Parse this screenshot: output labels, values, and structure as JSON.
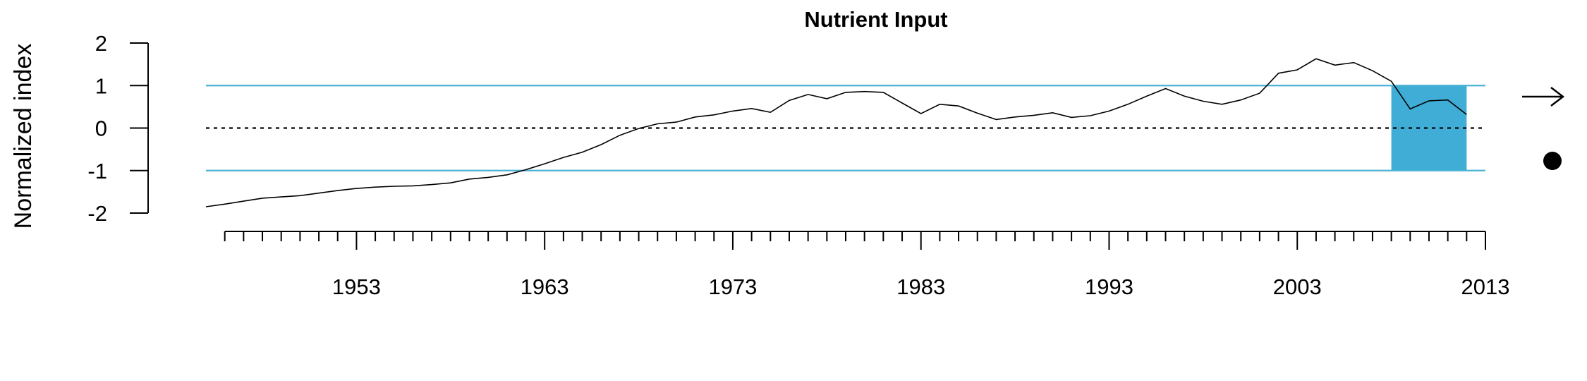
{
  "chart_data": {
    "type": "line",
    "title": "Nutrient Input",
    "ylabel": "Normalized index",
    "xlabel": "",
    "xlim": [
      1945,
      2013
    ],
    "ylim": [
      -2,
      2
    ],
    "y_ticks": [
      -2,
      -1,
      0,
      1,
      2
    ],
    "x_tick_labels": [
      1953,
      1963,
      1973,
      1983,
      1993,
      2003,
      2013
    ],
    "x_minor_tick_step": 1,
    "reference_lines": [
      {
        "y": 1,
        "style": "solid",
        "color": "#4ab3d3"
      },
      {
        "y": -1,
        "style": "solid",
        "color": "#4ab3d3"
      },
      {
        "y": 0,
        "style": "dotted",
        "color": "#000000"
      }
    ],
    "highlight_region": {
      "x": [
        2008,
        2012
      ],
      "y": [
        -1,
        1
      ],
      "color": "#3fadd6"
    },
    "series": [
      {
        "color": "#000000",
        "x": [
          1945,
          1946,
          1947,
          1948,
          1949,
          1950,
          1951,
          1952,
          1953,
          1954,
          1955,
          1956,
          1957,
          1958,
          1959,
          1960,
          1961,
          1962,
          1963,
          1964,
          1965,
          1966,
          1967,
          1968,
          1969,
          1970,
          1971,
          1972,
          1973,
          1974,
          1975,
          1976,
          1977,
          1978,
          1979,
          1980,
          1981,
          1982,
          1983,
          1984,
          1985,
          1986,
          1987,
          1988,
          1989,
          1990,
          1991,
          1992,
          1993,
          1994,
          1995,
          1996,
          1997,
          1998,
          1999,
          2000,
          2001,
          2002,
          2003,
          2004,
          2005,
          2006,
          2007,
          2008,
          2009,
          2010,
          2011,
          2012
        ],
        "values": [
          -1.85,
          -1.79,
          -1.72,
          -1.65,
          -1.62,
          -1.59,
          -1.53,
          -1.47,
          -1.42,
          -1.39,
          -1.37,
          -1.36,
          -1.33,
          -1.29,
          -1.2,
          -1.16,
          -1.1,
          -0.98,
          -0.84,
          -0.69,
          -0.57,
          -0.39,
          -0.17,
          -0.01,
          0.1,
          0.14,
          0.26,
          0.31,
          0.4,
          0.46,
          0.37,
          0.65,
          0.79,
          0.69,
          0.84,
          0.86,
          0.84,
          0.59,
          0.34,
          0.56,
          0.52,
          0.35,
          0.2,
          0.26,
          0.3,
          0.36,
          0.25,
          0.29,
          0.4,
          0.56,
          0.75,
          0.93,
          0.75,
          0.63,
          0.56,
          0.66,
          0.82,
          1.29,
          1.37,
          1.63,
          1.48,
          1.54,
          1.35,
          1.1,
          0.45,
          0.64,
          0.66,
          0.32
        ]
      }
    ],
    "side_symbols": [
      "arrow-right",
      "filled-circle"
    ]
  }
}
